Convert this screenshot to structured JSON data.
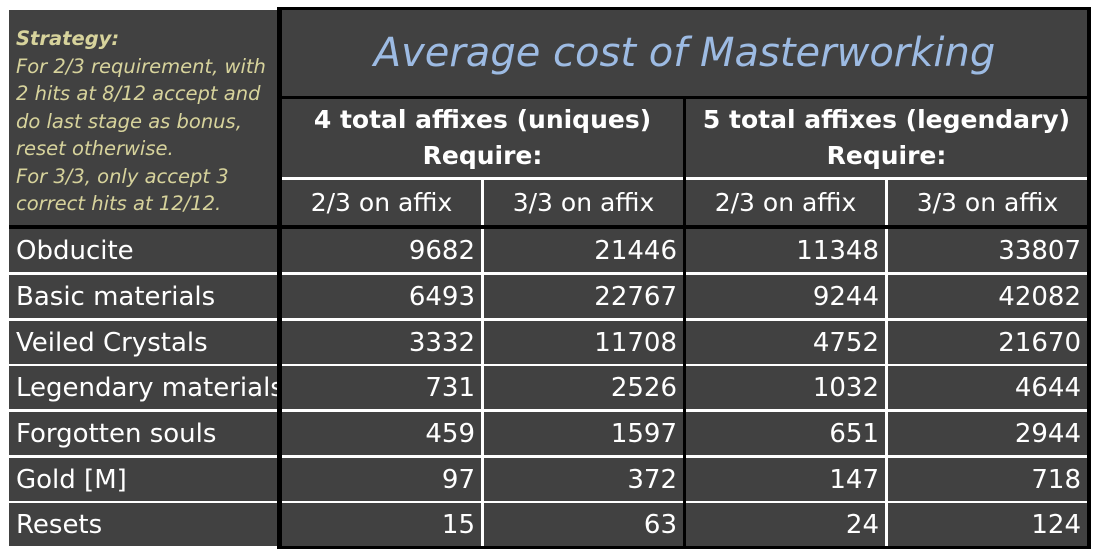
{
  "strategy": {
    "heading": "Strategy:",
    "lines": [
      "For 2/3 requirement, with",
      "2 hits at 8/12 accept and",
      "do last stage as bonus,",
      "reset otherwise.",
      "For 3/3, only accept 3",
      "correct hits at 12/12."
    ]
  },
  "colors": {
    "cell_background": "#414141",
    "grid_lines": "#000000",
    "title_text": "#9dbbe3",
    "strategy_text": "#d7d39c",
    "body_text": "#ffffff"
  },
  "chart_data": {
    "type": "table",
    "title": "Average cost of Masterworking",
    "column_groups": [
      {
        "label": "4 total affixes (uniques)",
        "sublabel": "Require:",
        "columns": [
          "2/3 on affix",
          "3/3 on affix"
        ]
      },
      {
        "label": "5 total affixes (legendary)",
        "sublabel": "Require:",
        "columns": [
          "2/3 on affix",
          "3/3 on affix"
        ]
      }
    ],
    "rows": [
      {
        "label": "Obducite",
        "values": [
          9682,
          21446,
          11348,
          33807
        ]
      },
      {
        "label": "Basic materials",
        "values": [
          6493,
          22767,
          9244,
          42082
        ]
      },
      {
        "label": "Veiled Crystals",
        "values": [
          3332,
          11708,
          4752,
          21670
        ]
      },
      {
        "label": "Legendary materials",
        "values": [
          731,
          2526,
          1032,
          4644
        ]
      },
      {
        "label": "Forgotten souls",
        "values": [
          459,
          1597,
          651,
          2944
        ]
      },
      {
        "label": "Gold [M]",
        "values": [
          97,
          372,
          147,
          718
        ]
      },
      {
        "label": "Resets",
        "values": [
          15,
          63,
          24,
          124
        ]
      }
    ]
  }
}
